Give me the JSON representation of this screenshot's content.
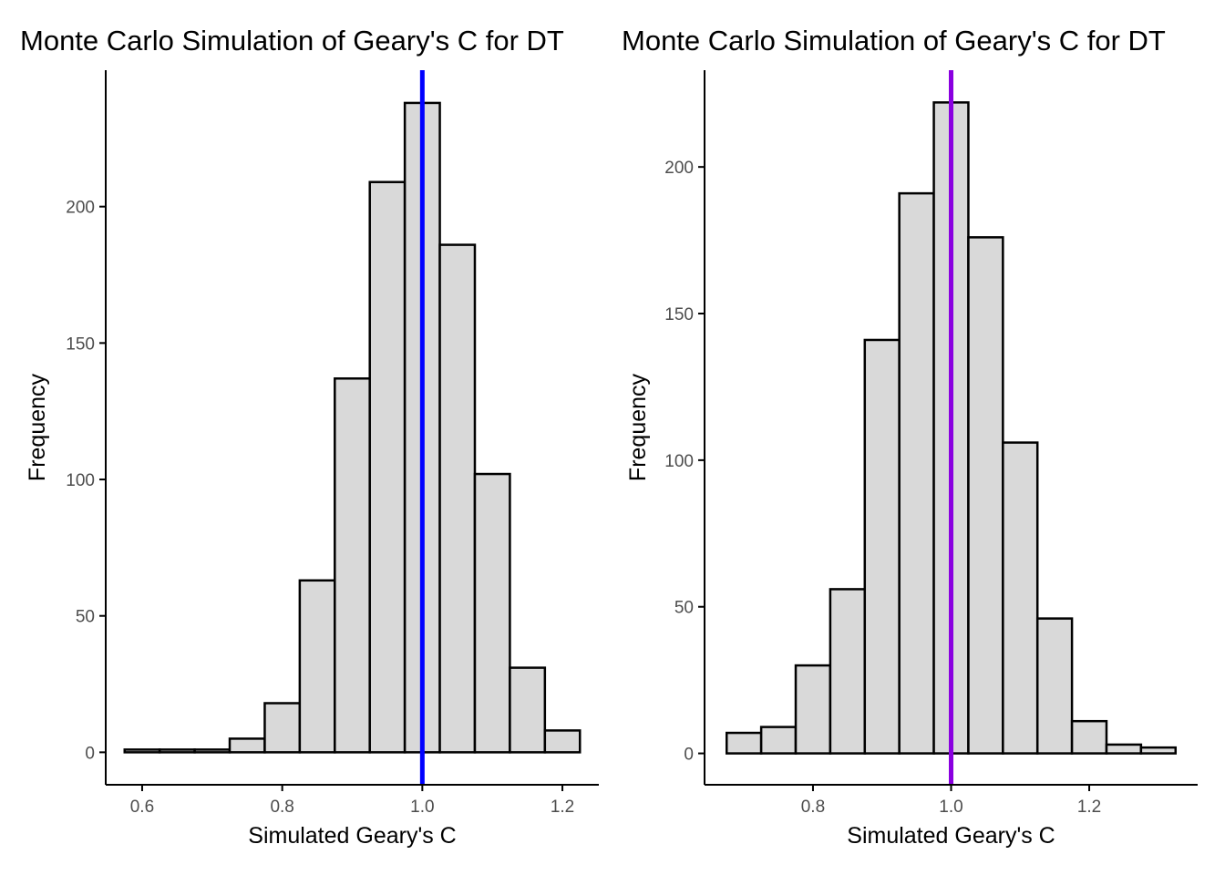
{
  "chart_data": [
    {
      "type": "bar",
      "title": "Monte Carlo Simulation of Geary's C for DT",
      "xlabel": "Simulated Geary's C",
      "ylabel": "Frequency",
      "bin_width": 0.05,
      "bins": [
        {
          "x0": 0.575,
          "x1": 0.625,
          "value": 1
        },
        {
          "x0": 0.625,
          "x1": 0.675,
          "value": 1
        },
        {
          "x0": 0.675,
          "x1": 0.725,
          "value": 1
        },
        {
          "x0": 0.725,
          "x1": 0.775,
          "value": 5
        },
        {
          "x0": 0.775,
          "x1": 0.825,
          "value": 18
        },
        {
          "x0": 0.825,
          "x1": 0.875,
          "value": 63
        },
        {
          "x0": 0.875,
          "x1": 0.925,
          "value": 137
        },
        {
          "x0": 0.925,
          "x1": 0.975,
          "value": 209
        },
        {
          "x0": 0.975,
          "x1": 1.025,
          "value": 238
        },
        {
          "x0": 1.025,
          "x1": 1.075,
          "value": 186
        },
        {
          "x0": 1.075,
          "x1": 1.125,
          "value": 102
        },
        {
          "x0": 1.125,
          "x1": 1.175,
          "value": 31
        },
        {
          "x0": 1.175,
          "x1": 1.225,
          "value": 8
        }
      ],
      "xlim": [
        0.548,
        1.252
      ],
      "ylim": [
        -11.9,
        250.0
      ],
      "x_ticks": [
        0.6,
        0.8,
        1.0,
        1.2
      ],
      "x_tick_labels": [
        "0.6",
        "0.8",
        "1.0",
        "1.2"
      ],
      "y_ticks": [
        0,
        50,
        100,
        150,
        200
      ],
      "y_tick_labels": [
        "0",
        "50",
        "100",
        "150",
        "200"
      ],
      "reference_line": {
        "x": 1.0,
        "color": "#0000ff"
      },
      "grid": false,
      "bar_fill": "#d9d9d9",
      "bar_outline": "#000000"
    },
    {
      "type": "bar",
      "title": "Monte Carlo Simulation of Geary's C for DT",
      "xlabel": "Simulated Geary's C",
      "ylabel": "Frequency",
      "bin_width": 0.05,
      "bins": [
        {
          "x0": 0.675,
          "x1": 0.725,
          "value": 7
        },
        {
          "x0": 0.725,
          "x1": 0.775,
          "value": 9
        },
        {
          "x0": 0.775,
          "x1": 0.825,
          "value": 30
        },
        {
          "x0": 0.825,
          "x1": 0.875,
          "value": 56
        },
        {
          "x0": 0.875,
          "x1": 0.925,
          "value": 141
        },
        {
          "x0": 0.925,
          "x1": 0.975,
          "value": 191
        },
        {
          "x0": 0.975,
          "x1": 1.025,
          "value": 222
        },
        {
          "x0": 1.025,
          "x1": 1.075,
          "value": 176
        },
        {
          "x0": 1.075,
          "x1": 1.125,
          "value": 106
        },
        {
          "x0": 1.125,
          "x1": 1.175,
          "value": 46
        },
        {
          "x0": 1.175,
          "x1": 1.225,
          "value": 11
        },
        {
          "x0": 1.225,
          "x1": 1.275,
          "value": 3
        },
        {
          "x0": 1.275,
          "x1": 1.325,
          "value": 2
        }
      ],
      "xlim": [
        0.643,
        1.357
      ],
      "ylim": [
        -10.7,
        233.0
      ],
      "x_ticks": [
        0.8,
        1.0,
        1.2
      ],
      "x_tick_labels": [
        "0.8",
        "1.0",
        "1.2"
      ],
      "y_ticks": [
        0,
        50,
        100,
        150,
        200
      ],
      "y_tick_labels": [
        "0",
        "50",
        "100",
        "150",
        "200"
      ],
      "reference_line": {
        "x": 1.0,
        "color": "#8a00e0"
      },
      "grid": false,
      "bar_fill": "#d9d9d9",
      "bar_outline": "#000000"
    }
  ]
}
